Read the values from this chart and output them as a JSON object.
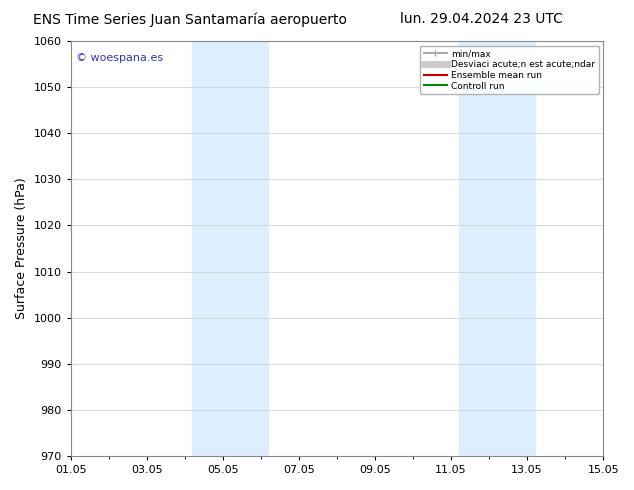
{
  "title_left": "ENS Time Series Juan Santamaría aeropuerto",
  "title_right": "lun. 29.04.2024 23 UTC",
  "ylabel": "Surface Pressure (hPa)",
  "ylim": [
    970,
    1060
  ],
  "yticks": [
    970,
    980,
    990,
    1000,
    1010,
    1020,
    1030,
    1040,
    1050,
    1060
  ],
  "xlim_start": 0,
  "xlim_end": 14,
  "xtick_labels": [
    "01.05",
    "03.05",
    "05.05",
    "07.05",
    "09.05",
    "11.05",
    "13.05",
    "15.05"
  ],
  "xtick_positions": [
    0,
    2,
    4,
    6,
    8,
    10,
    12,
    14
  ],
  "shaded_bands": [
    {
      "xmin": 3.2,
      "xmax": 5.2,
      "color": "#ddeeff"
    },
    {
      "xmin": 10.2,
      "xmax": 12.2,
      "color": "#ddeeff"
    }
  ],
  "watermark": "© woespana.es",
  "legend_entries": [
    {
      "label": "min/max",
      "color": "#aaaaaa",
      "lw": 1.5
    },
    {
      "label": "Desviaci acute;n est acute;ndar",
      "color": "#cccccc",
      "lw": 5
    },
    {
      "label": "Ensemble mean run",
      "color": "#cc0000",
      "lw": 1.5
    },
    {
      "label": "Controll run",
      "color": "#008800",
      "lw": 1.5
    }
  ],
  "bg_color": "#ffffff",
  "plot_bg_color": "#ffffff",
  "grid_color": "#cccccc",
  "title_fontsize": 10,
  "axis_label_fontsize": 9,
  "tick_fontsize": 8,
  "watermark_color": "#3333bb"
}
